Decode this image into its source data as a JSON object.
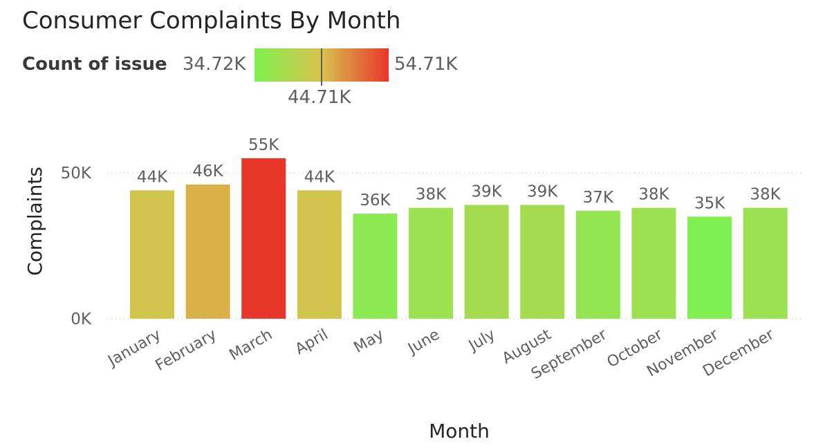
{
  "chart_data": {
    "type": "bar",
    "title": "Consumer Complaints By Month",
    "xlabel": "Month",
    "ylabel": "Complaints",
    "categories": [
      "January",
      "February",
      "March",
      "April",
      "May",
      "June",
      "July",
      "August",
      "September",
      "October",
      "November",
      "December"
    ],
    "values": [
      44000,
      46000,
      55000,
      44000,
      36000,
      38000,
      39000,
      39000,
      37000,
      38000,
      35000,
      38000
    ],
    "data_labels": [
      "44K",
      "46K",
      "55K",
      "44K",
      "36K",
      "38K",
      "39K",
      "39K",
      "37K",
      "38K",
      "35K",
      "38K"
    ],
    "ylim": [
      0,
      60000
    ],
    "y_ticks": [
      0,
      50000
    ],
    "y_tick_labels": [
      "0K",
      "50K"
    ],
    "grid": true,
    "legend": {
      "title": "Count of issue",
      "min_label": "34.72K",
      "mid_label": "44.71K",
      "max_label": "54.71K",
      "min": 34720,
      "mid": 44710,
      "max": 54710,
      "colors": [
        "#7ff04f",
        "#d8c24e",
        "#e8362a"
      ]
    }
  }
}
